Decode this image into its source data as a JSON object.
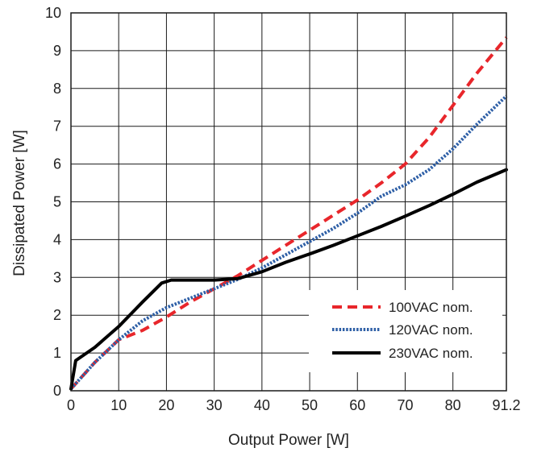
{
  "chart_data": {
    "type": "line",
    "xlabel": "Output Power [W]",
    "ylabel": "Dissipated Power [W]",
    "xlim": [
      0,
      91.2
    ],
    "ylim": [
      0,
      10
    ],
    "xticks": [
      0,
      10,
      20,
      30,
      40,
      50,
      60,
      70,
      80,
      91.2
    ],
    "xtick_labels": [
      "0",
      "10",
      "20",
      "30",
      "40",
      "50",
      "60",
      "70",
      "80",
      "91.2"
    ],
    "yticks": [
      0,
      1,
      2,
      3,
      4,
      5,
      6,
      7,
      8,
      9,
      10
    ],
    "ytick_labels": [
      "0",
      "1",
      "2",
      "3",
      "4",
      "5",
      "6",
      "7",
      "8",
      "9",
      "10"
    ],
    "grid": true,
    "legend_position": "bottom-right",
    "series": [
      {
        "name": "100VAC nom.",
        "color": "#e8262b",
        "dash": "dashed",
        "x": [
          0,
          5,
          10,
          15,
          20,
          25,
          30,
          35,
          40,
          45,
          50,
          55,
          60,
          65,
          70,
          75,
          80,
          85,
          91.2
        ],
        "y": [
          0.05,
          0.75,
          1.35,
          1.6,
          1.95,
          2.35,
          2.7,
          3.05,
          3.45,
          3.85,
          4.25,
          4.65,
          5.05,
          5.5,
          6.0,
          6.7,
          7.55,
          8.4,
          9.35
        ]
      },
      {
        "name": "120VAC nom.",
        "color": "#2e5fa6",
        "dash": "dotted",
        "x": [
          0,
          5,
          10,
          15,
          20,
          25,
          30,
          35,
          40,
          45,
          50,
          55,
          60,
          65,
          70,
          75,
          80,
          85,
          91.2
        ],
        "y": [
          0.05,
          0.75,
          1.35,
          1.85,
          2.2,
          2.45,
          2.7,
          2.95,
          3.25,
          3.6,
          3.95,
          4.3,
          4.7,
          5.15,
          5.45,
          5.85,
          6.4,
          7.05,
          7.8
        ]
      },
      {
        "name": "230VAC nom.",
        "color": "#000000",
        "dash": "solid",
        "x": [
          0,
          1,
          5,
          10,
          15,
          19,
          21,
          25,
          30,
          35,
          40,
          45,
          50,
          55,
          60,
          65,
          70,
          75,
          80,
          85,
          91.2
        ],
        "y": [
          0.05,
          0.8,
          1.15,
          1.7,
          2.35,
          2.85,
          2.93,
          2.93,
          2.93,
          2.97,
          3.15,
          3.4,
          3.62,
          3.85,
          4.1,
          4.35,
          4.62,
          4.9,
          5.2,
          5.52,
          5.85
        ]
      }
    ]
  }
}
